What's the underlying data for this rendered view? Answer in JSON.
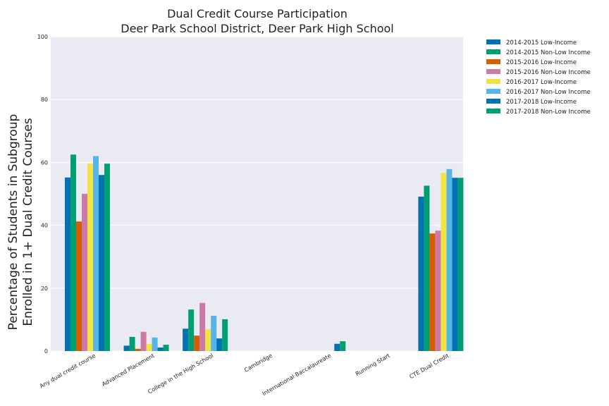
{
  "chart_data": {
    "type": "bar",
    "title": "Dual Credit Course Participation",
    "subtitle": "Deer Park School District, Deer Park High School",
    "ylabel_line1": "Percentage of Students in Subgroup",
    "ylabel_line2": "Enrolled in 1+ Dual Credit Courses",
    "xlabel": "",
    "ylim": [
      0,
      100
    ],
    "yticks": [
      "0",
      "20",
      "40",
      "60",
      "80",
      "100"
    ],
    "categories": [
      "Any dual credit course",
      "Advanced Placement",
      "College in the High School",
      "Cambridge",
      "International Baccalaureate",
      "Running Start",
      "CTE Dual Credit"
    ],
    "grid": true,
    "legend_position": "outside-top-right",
    "series": [
      {
        "name": "2014-2015 Low-Income",
        "color": "#0072b2",
        "values": [
          55.2,
          1.7,
          7.1,
          0,
          0,
          0,
          49.1
        ]
      },
      {
        "name": "2014-2015 Non-Low Income",
        "color": "#009e73",
        "values": [
          62.5,
          4.5,
          13.2,
          0,
          0,
          0,
          52.6
        ]
      },
      {
        "name": "2015-2016 Low-Income",
        "color": "#d55e00",
        "values": [
          41.2,
          0.7,
          4.9,
          0,
          0,
          0,
          37.4
        ]
      },
      {
        "name": "2015-2016 Non-Low Income",
        "color": "#cc79a7",
        "values": [
          50.0,
          6.1,
          15.3,
          0,
          0,
          0,
          38.3
        ]
      },
      {
        "name": "2016-2017 Low-Income",
        "color": "#f0e442",
        "values": [
          59.6,
          2.2,
          6.9,
          0,
          0,
          0,
          56.7
        ]
      },
      {
        "name": "2016-2017 Non-Low Income",
        "color": "#56b4e9",
        "values": [
          62.0,
          4.3,
          11.2,
          0,
          0,
          0,
          57.9
        ]
      },
      {
        "name": "2017-2018 Low-Income",
        "color": "#0072b2",
        "values": [
          56.0,
          1.1,
          4.0,
          0,
          2.3,
          0,
          55.1
        ]
      },
      {
        "name": "2017-2018 Non-Low Income",
        "color": "#009e73",
        "values": [
          59.6,
          2.0,
          10.1,
          0,
          3.1,
          0,
          55.1
        ]
      }
    ]
  }
}
